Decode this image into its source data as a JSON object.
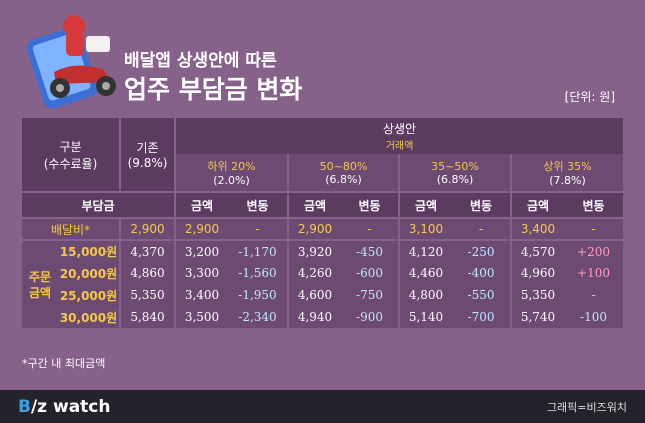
{
  "header": {
    "title_line1": "배달앱 상생안에 따른",
    "title_line2": "업주 부담금 변화",
    "unit": "[단위: 원]"
  },
  "table": {
    "category_label": "구분",
    "category_sub": "(수수료율)",
    "base_label": "기존",
    "base_rate": "(9.8%)",
    "plan_label": "상생안",
    "plan_sub": "거래액",
    "bands": [
      {
        "range": "하위 20%",
        "rate": "(2.0%)"
      },
      {
        "range": "50~80%",
        "rate": "(6.8%)"
      },
      {
        "range": "35~50%",
        "rate": "(6.8%)"
      },
      {
        "range": "상위 35%",
        "rate": "(7.8%)"
      }
    ],
    "burden_label": "부담금",
    "amount_label": "금액",
    "change_label": "변동",
    "side_label": "주문\n금액",
    "fee_row": {
      "label": "배달비*",
      "base": "2,900",
      "bands": [
        {
          "amount": "2,900",
          "change": "-"
        },
        {
          "amount": "2,900",
          "change": "-"
        },
        {
          "amount": "3,100",
          "change": "-"
        },
        {
          "amount": "3,400",
          "change": "-"
        }
      ]
    },
    "rows": [
      {
        "price": "15,000원",
        "base": "4,370",
        "bands": [
          {
            "amount": "3,200",
            "change": "-1,170",
            "dir": "neg"
          },
          {
            "amount": "3,920",
            "change": "-450",
            "dir": "neg"
          },
          {
            "amount": "4,120",
            "change": "-250",
            "dir": "neg"
          },
          {
            "amount": "4,570",
            "change": "+200",
            "dir": "pos"
          }
        ]
      },
      {
        "price": "20,000원",
        "base": "4,860",
        "bands": [
          {
            "amount": "3,300",
            "change": "-1,560",
            "dir": "neg"
          },
          {
            "amount": "4,260",
            "change": "-600",
            "dir": "neg"
          },
          {
            "amount": "4,460",
            "change": "-400",
            "dir": "neg"
          },
          {
            "amount": "4,960",
            "change": "+100",
            "dir": "pos"
          }
        ]
      },
      {
        "price": "25,000원",
        "base": "5,350",
        "bands": [
          {
            "amount": "3,400",
            "change": "-1,950",
            "dir": "neg"
          },
          {
            "amount": "4,600",
            "change": "-750",
            "dir": "neg"
          },
          {
            "amount": "4,800",
            "change": "-550",
            "dir": "neg"
          },
          {
            "amount": "5,350",
            "change": "-",
            "dir": "zero"
          }
        ]
      },
      {
        "price": "30,000원",
        "base": "5,840",
        "bands": [
          {
            "amount": "3,500",
            "change": "-2,340",
            "dir": "neg"
          },
          {
            "amount": "4,940",
            "change": "-900",
            "dir": "neg"
          },
          {
            "amount": "5,140",
            "change": "-700",
            "dir": "neg"
          },
          {
            "amount": "5,740",
            "change": "-100",
            "dir": "neg"
          }
        ]
      }
    ]
  },
  "footnote": "*구간 내 최대금액",
  "footer": {
    "brand_b": "B",
    "brand_rest": "/z watch",
    "credit": "그래픽=비즈워치"
  }
}
